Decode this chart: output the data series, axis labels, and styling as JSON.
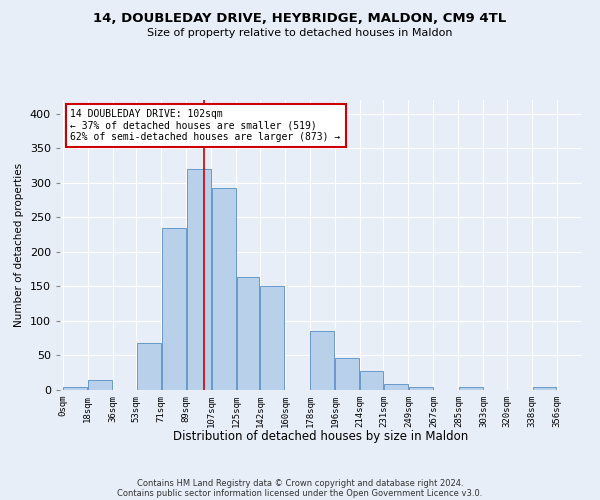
{
  "title1": "14, DOUBLEDAY DRIVE, HEYBRIDGE, MALDON, CM9 4TL",
  "title2": "Size of property relative to detached houses in Maldon",
  "xlabel": "Distribution of detached houses by size in Maldon",
  "ylabel": "Number of detached properties",
  "footer1": "Contains HM Land Registry data © Crown copyright and database right 2024.",
  "footer2": "Contains public sector information licensed under the Open Government Licence v3.0.",
  "annotation_line1": "14 DOUBLEDAY DRIVE: 102sqm",
  "annotation_line2": "← 37% of detached houses are smaller (519)",
  "annotation_line3": "62% of semi-detached houses are larger (873) →",
  "bar_left_edges": [
    0,
    18,
    36,
    53,
    71,
    89,
    107,
    125,
    142,
    160,
    178,
    196,
    214,
    231,
    249,
    267,
    285,
    303,
    320,
    338
  ],
  "bar_heights": [
    4,
    15,
    0,
    68,
    235,
    320,
    293,
    163,
    150,
    0,
    85,
    46,
    28,
    8,
    5,
    0,
    5,
    0,
    0,
    4
  ],
  "bar_widths": [
    18,
    18,
    17,
    18,
    18,
    18,
    18,
    17,
    18,
    18,
    18,
    18,
    17,
    18,
    18,
    18,
    18,
    17,
    18,
    18
  ],
  "tick_labels": [
    "0sqm",
    "18sqm",
    "36sqm",
    "53sqm",
    "71sqm",
    "89sqm",
    "107sqm",
    "125sqm",
    "142sqm",
    "160sqm",
    "178sqm",
    "196sqm",
    "214sqm",
    "231sqm",
    "249sqm",
    "267sqm",
    "285sqm",
    "303sqm",
    "320sqm",
    "338sqm",
    "356sqm"
  ],
  "bar_color": "#b8d0ea",
  "bar_edge_color": "#6699cc",
  "vline_color": "#cc0000",
  "vline_x": 102,
  "annotation_box_color": "#cc0000",
  "background_color": "#e8eef8",
  "grid_color": "#ffffff",
  "ylim": [
    0,
    420
  ],
  "xlim": [
    -2,
    374
  ]
}
